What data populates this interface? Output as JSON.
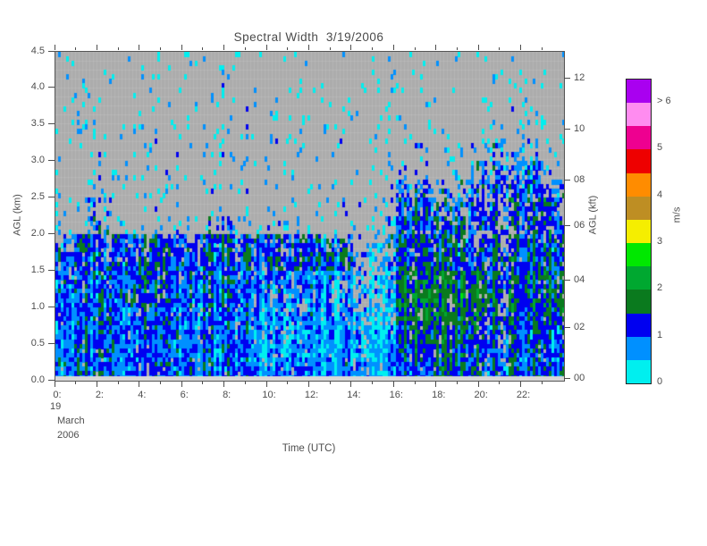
{
  "title": "Spectral Width  3/19/2006",
  "axes": {
    "left": {
      "label": "AGL (km)",
      "ticks": [
        "4.5",
        "4.0",
        "3.5",
        "3.0",
        "2.5",
        "2.0",
        "1.5",
        "1.0",
        "0.5",
        "0.0"
      ]
    },
    "right": {
      "label": "AGL (kft)",
      "ticks": [
        "12",
        "10",
        "08",
        "06",
        "04",
        "02",
        "00"
      ]
    },
    "bottom": {
      "label": "Time (UTC)",
      "ticks": [
        "0:",
        "2:",
        "4:",
        "6:",
        "8:",
        "10:",
        "12:",
        "14:",
        "16:",
        "18:",
        "20:",
        "22:"
      ],
      "date_lines": [
        "19",
        "March",
        "2006"
      ]
    }
  },
  "colorbar": {
    "unit": "m/s",
    "labels": [
      "> 6",
      "5",
      "4",
      "3",
      "2",
      "1",
      "0"
    ],
    "colors": [
      "#A900F0",
      "#FF8CF0",
      "#EE0090",
      "#EE0000",
      "#FF8C00",
      "#BE8E23",
      "#F5EE00",
      "#00E800",
      "#00A830",
      "#0A7A1E",
      "#0000F0",
      "#0090FF",
      "#00EFEF"
    ],
    "bin_edges_mps": [
      0,
      0.5,
      1,
      1.5,
      2,
      2.5,
      3,
      3.5,
      4,
      4.5,
      5,
      5.5,
      6
    ]
  },
  "chart_data": {
    "type": "heatmap",
    "title": "Spectral Width 3/19/2006",
    "xlabel": "Time (UTC)",
    "ylabel_left": "AGL (km)",
    "ylabel_right": "AGL (kft)",
    "units": "m/s",
    "date": "19 March 2006",
    "x_hours_utc": {
      "start": 0,
      "step": 0.5,
      "count": 48
    },
    "z_km": {
      "top": 4.5,
      "step": 0.25,
      "rows": 18
    },
    "xlim_hours": [
      0,
      24
    ],
    "ylim_km": [
      0,
      4.5
    ],
    "no_data_color": "#ACACAC",
    "encoding": "rows are run-length encoded as [count,value] pairs; row 0 = 4.25-4.5 km (top), row 17 = 0-0.25 km (bottom); 48 columns of 0.5 h. values = mean spectral width (m/s); fill = fraction of gates containing data (gray = no data)",
    "values_rle": [
      [
        [
          48,
          0.3
        ]
      ],
      [
        [
          48,
          0.3
        ]
      ],
      [
        [
          48,
          0.3
        ]
      ],
      [
        [
          48,
          0.35
        ]
      ],
      [
        [
          40,
          0.4
        ],
        [
          6,
          0.6
        ],
        [
          2,
          0.4
        ]
      ],
      [
        [
          32,
          0.4
        ],
        [
          3,
          0.8
        ],
        [
          4,
          0.4
        ],
        [
          7,
          0.9
        ],
        [
          2,
          0.4
        ]
      ],
      [
        [
          32,
          0.4
        ],
        [
          3,
          1.0
        ],
        [
          4,
          0.4
        ],
        [
          7,
          1.0
        ],
        [
          2,
          0.8
        ]
      ],
      [
        [
          32,
          0.4
        ],
        [
          3,
          1.2
        ],
        [
          4,
          1.0
        ],
        [
          7,
          1.1
        ],
        [
          2,
          1.0
        ]
      ],
      [
        [
          3,
          0.4
        ],
        [
          2,
          1.0
        ],
        [
          27,
          0.4
        ],
        [
          3,
          1.3
        ],
        [
          4,
          1.1
        ],
        [
          9,
          1.2
        ]
      ],
      [
        [
          3,
          0.5
        ],
        [
          2,
          1.1
        ],
        [
          9,
          0.5
        ],
        [
          4,
          0.9
        ],
        [
          14,
          0.5
        ],
        [
          3,
          1.3
        ],
        [
          13,
          1.2
        ]
      ],
      [
        [
          2,
          1.1
        ],
        [
          12,
          1.2
        ],
        [
          4,
          1.25
        ],
        [
          6,
          1.2
        ],
        [
          4,
          1.1
        ],
        [
          3,
          0.8
        ],
        [
          1,
          1.0
        ],
        [
          3,
          1.4
        ],
        [
          13,
          1.25
        ]
      ],
      [
        [
          5,
          1.1
        ],
        [
          23,
          1.2
        ],
        [
          4,
          0.8
        ],
        [
          4,
          1.5
        ],
        [
          12,
          1.3
        ]
      ],
      [
        [
          6,
          1.0
        ],
        [
          4,
          1.3
        ],
        [
          8,
          1.1
        ],
        [
          8,
          0.85
        ],
        [
          6,
          0.7
        ],
        [
          8,
          1.7
        ],
        [
          8,
          1.4
        ]
      ],
      [
        [
          6,
          1.0
        ],
        [
          4,
          1.35
        ],
        [
          8,
          1.05
        ],
        [
          8,
          0.8
        ],
        [
          6,
          0.65
        ],
        [
          8,
          1.8
        ],
        [
          8,
          1.5
        ]
      ],
      [
        [
          18,
          1.0
        ],
        [
          10,
          0.75
        ],
        [
          4,
          0.6
        ],
        [
          8,
          1.7
        ],
        [
          8,
          1.4
        ]
      ],
      [
        [
          18,
          1.0
        ],
        [
          10,
          0.7
        ],
        [
          4,
          0.6
        ],
        [
          8,
          1.5
        ],
        [
          8,
          1.2
        ]
      ],
      [
        [
          6,
          1.1
        ],
        [
          12,
          0.95
        ],
        [
          10,
          0.7
        ],
        [
          4,
          0.65
        ],
        [
          8,
          1.4
        ],
        [
          8,
          1.1
        ]
      ],
      [
        [
          18,
          1.05
        ],
        [
          10,
          0.8
        ],
        [
          4,
          0.8
        ],
        [
          4,
          1.2
        ],
        [
          4,
          1.5
        ],
        [
          8,
          1.1
        ]
      ]
    ],
    "fill_rle": [
      [
        [
          32,
          0.04
        ],
        [
          4,
          0.07
        ],
        [
          4,
          0.04
        ],
        [
          4,
          0.06
        ],
        [
          4,
          0.04
        ]
      ],
      [
        [
          2,
          0.04
        ],
        [
          2,
          0.08
        ],
        [
          28,
          0.04
        ],
        [
          4,
          0.08
        ],
        [
          4,
          0.04
        ],
        [
          4,
          0.07
        ],
        [
          4,
          0.04
        ]
      ],
      [
        [
          2,
          0.05
        ],
        [
          2,
          0.1
        ],
        [
          16,
          0.05
        ],
        [
          1,
          0.12
        ],
        [
          11,
          0.05
        ],
        [
          4,
          0.08
        ],
        [
          4,
          0.05
        ],
        [
          4,
          0.08
        ],
        [
          4,
          0.05
        ]
      ],
      [
        [
          2,
          0.05
        ],
        [
          2,
          0.1
        ],
        [
          16,
          0.05
        ],
        [
          1,
          0.15
        ],
        [
          9,
          0.05
        ],
        [
          6,
          0.1
        ],
        [
          4,
          0.06
        ],
        [
          6,
          0.1
        ],
        [
          2,
          0.06
        ]
      ],
      [
        [
          2,
          0.06
        ],
        [
          2,
          0.1
        ],
        [
          10,
          0.06
        ],
        [
          2,
          0.08
        ],
        [
          4,
          0.06
        ],
        [
          1,
          0.15
        ],
        [
          9,
          0.06
        ],
        [
          6,
          0.12
        ],
        [
          4,
          0.07
        ],
        [
          6,
          0.15
        ],
        [
          2,
          0.08
        ]
      ],
      [
        [
          2,
          0.06
        ],
        [
          2,
          0.08
        ],
        [
          28,
          0.06
        ],
        [
          3,
          0.15
        ],
        [
          4,
          0.08
        ],
        [
          1,
          0.2
        ],
        [
          5,
          0.35
        ],
        [
          1,
          0.25
        ],
        [
          2,
          0.1
        ]
      ],
      [
        [
          4,
          0.07
        ],
        [
          1,
          0.1
        ],
        [
          27,
          0.07
        ],
        [
          3,
          0.25
        ],
        [
          4,
          0.12
        ],
        [
          7,
          0.55
        ],
        [
          2,
          0.2
        ]
      ],
      [
        [
          3,
          0.08
        ],
        [
          2,
          0.15
        ],
        [
          27,
          0.08
        ],
        [
          3,
          0.5
        ],
        [
          4,
          0.25
        ],
        [
          7,
          0.7
        ],
        [
          2,
          0.35
        ]
      ],
      [
        [
          3,
          0.08
        ],
        [
          2,
          0.3
        ],
        [
          9,
          0.08
        ],
        [
          4,
          0.12
        ],
        [
          14,
          0.08
        ],
        [
          3,
          0.75
        ],
        [
          4,
          0.5
        ],
        [
          8,
          0.75
        ],
        [
          1,
          0.5
        ]
      ],
      [
        [
          3,
          0.1
        ],
        [
          2,
          0.55
        ],
        [
          3,
          0.1
        ],
        [
          2,
          0.15
        ],
        [
          4,
          0.1
        ],
        [
          4,
          0.3
        ],
        [
          6,
          0.15
        ],
        [
          7,
          0.1
        ],
        [
          1,
          0.3
        ],
        [
          3,
          0.9
        ],
        [
          13,
          0.7
        ]
      ],
      [
        [
          2,
          0.5
        ],
        [
          3,
          0.8
        ],
        [
          9,
          0.75
        ],
        [
          4,
          0.9
        ],
        [
          6,
          0.85
        ],
        [
          4,
          0.6
        ],
        [
          3,
          0.3
        ],
        [
          1,
          0.5
        ],
        [
          3,
          0.95
        ],
        [
          13,
          0.85
        ]
      ],
      [
        [
          5,
          0.85
        ],
        [
          23,
          0.95
        ],
        [
          4,
          0.45
        ],
        [
          4,
          0.95
        ],
        [
          12,
          0.9
        ]
      ],
      [
        [
          6,
          0.9
        ],
        [
          12,
          0.95
        ],
        [
          8,
          0.85
        ],
        [
          2,
          0.7
        ],
        [
          4,
          0.5
        ],
        [
          8,
          0.95
        ],
        [
          8,
          0.92
        ]
      ],
      [
        [
          18,
          0.95
        ],
        [
          8,
          0.85
        ],
        [
          6,
          0.6
        ],
        [
          16,
          0.95
        ]
      ],
      [
        [
          18,
          0.97
        ],
        [
          10,
          0.9
        ],
        [
          4,
          0.7
        ],
        [
          8,
          0.97
        ],
        [
          8,
          0.95
        ]
      ],
      [
        [
          18,
          1
        ],
        [
          10,
          0.95
        ],
        [
          4,
          0.85
        ],
        [
          16,
          1
        ]
      ],
      [
        [
          28,
          1
        ],
        [
          4,
          0.95
        ],
        [
          16,
          1
        ]
      ],
      [
        [
          48,
          1
        ]
      ]
    ]
  },
  "style": {
    "bg": "#FFFFFF",
    "plot_bg": "#ACACAC",
    "text": "#4D4D4D",
    "axis": "#555555"
  }
}
